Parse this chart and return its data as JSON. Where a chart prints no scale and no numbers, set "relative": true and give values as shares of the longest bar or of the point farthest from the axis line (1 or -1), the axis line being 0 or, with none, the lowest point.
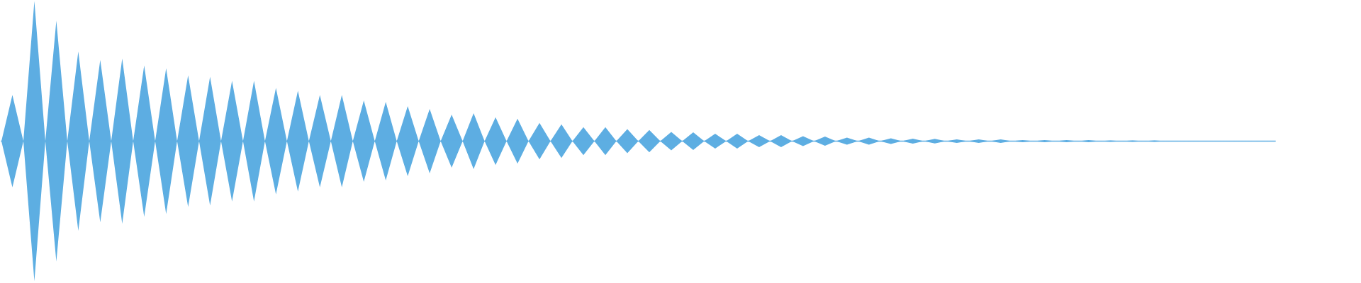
{
  "chart_data": {
    "type": "area",
    "relative": true,
    "categories": [
      null,
      null,
      null,
      null,
      null,
      null,
      null,
      null,
      null,
      null,
      null,
      null,
      null,
      null,
      null,
      null,
      null,
      null,
      null,
      null,
      null,
      null,
      null,
      null,
      null,
      null,
      null,
      null,
      null,
      null,
      null,
      null,
      null,
      null,
      null,
      null,
      null,
      null,
      null,
      null,
      null,
      null,
      null,
      null,
      null,
      null,
      null,
      null,
      null,
      null,
      null,
      null,
      null,
      null,
      null,
      null,
      null,
      null,
      null,
      null,
      null,
      null,
      null,
      null,
      null,
      null,
      null,
      null,
      null,
      null,
      null,
      null,
      null,
      null,
      null,
      null,
      null,
      null,
      null,
      null,
      null,
      null,
      null,
      null,
      null,
      null,
      null,
      null,
      null,
      null,
      null,
      null,
      null,
      null,
      null,
      null,
      null,
      null,
      null,
      null,
      null,
      null,
      null,
      null,
      null,
      null,
      null,
      null,
      null,
      null,
      null,
      null,
      null,
      null,
      null,
      null,
      null
    ],
    "series": [
      {
        "color": "#5dade2",
        "values": [
          0,
          0.33,
          0,
          1.0,
          0,
          0.86,
          0,
          0.64,
          0,
          0.58,
          0,
          0.59,
          0,
          0.54,
          0,
          0.52,
          0,
          0.47,
          0,
          0.46,
          0,
          0.43,
          0,
          0.43,
          0,
          0.38,
          0,
          0.36,
          0,
          0.33,
          0,
          0.33,
          0,
          0.29,
          0,
          0.28,
          0,
          0.25,
          0,
          0.23,
          0,
          0.19,
          0,
          0.2,
          0,
          0.17,
          0,
          0.16,
          0,
          0.13,
          0,
          0.12,
          0,
          0.1,
          0,
          0.1,
          0,
          0.086,
          0,
          0.08,
          0,
          0.066,
          0,
          0.063,
          0,
          0.053,
          0,
          0.053,
          0,
          0.043,
          0,
          0.043,
          0,
          0.035,
          0,
          0.033,
          0,
          0.025,
          0,
          0.025,
          0,
          0.02,
          0,
          0.018,
          0,
          0.017,
          0,
          0.013,
          0,
          0.012,
          0,
          0.012,
          0,
          0.008,
          0,
          0.008,
          0,
          0.008,
          0,
          0.007,
          0,
          0.005,
          0,
          0.005,
          0,
          0.005,
          0,
          0.003,
          0,
          0.003,
          0,
          0.003,
          0,
          0.003,
          0,
          0.003,
          0
        ]
      },
      {
        "color": "#5daee2",
        "values": [
          0,
          -0.33,
          0,
          -1.0,
          0,
          -0.86,
          0,
          -0.64,
          0,
          -0.58,
          0,
          -0.59,
          0,
          -0.54,
          0,
          -0.52,
          0,
          -0.47,
          0,
          -0.46,
          0,
          -0.43,
          0,
          -0.43,
          0,
          -0.38,
          0,
          -0.36,
          0,
          -0.33,
          0,
          -0.33,
          0,
          -0.29,
          0,
          -0.28,
          0,
          -0.25,
          0,
          -0.23,
          0,
          -0.19,
          0,
          -0.2,
          0,
          -0.17,
          0,
          -0.16,
          0,
          -0.13,
          0,
          -0.12,
          0,
          -0.1,
          0,
          -0.1,
          0,
          -0.086,
          0,
          -0.08,
          0,
          -0.066,
          0,
          -0.063,
          0,
          -0.053,
          0,
          -0.053,
          0,
          -0.043,
          0,
          -0.043,
          0,
          -0.035,
          0,
          -0.033,
          0,
          -0.025,
          0,
          -0.025,
          0,
          -0.02,
          0,
          -0.018,
          0,
          -0.017,
          0,
          -0.013,
          0,
          -0.012,
          0,
          -0.012,
          0,
          -0.008,
          0,
          -0.008,
          0,
          -0.008,
          0,
          -0.007,
          0,
          -0.005,
          0,
          -0.005,
          0,
          -0.005,
          0,
          -0.003,
          0,
          -0.003,
          0,
          -0.003,
          0,
          -0.003,
          0,
          -0.003,
          0
        ]
      }
    ]
  }
}
